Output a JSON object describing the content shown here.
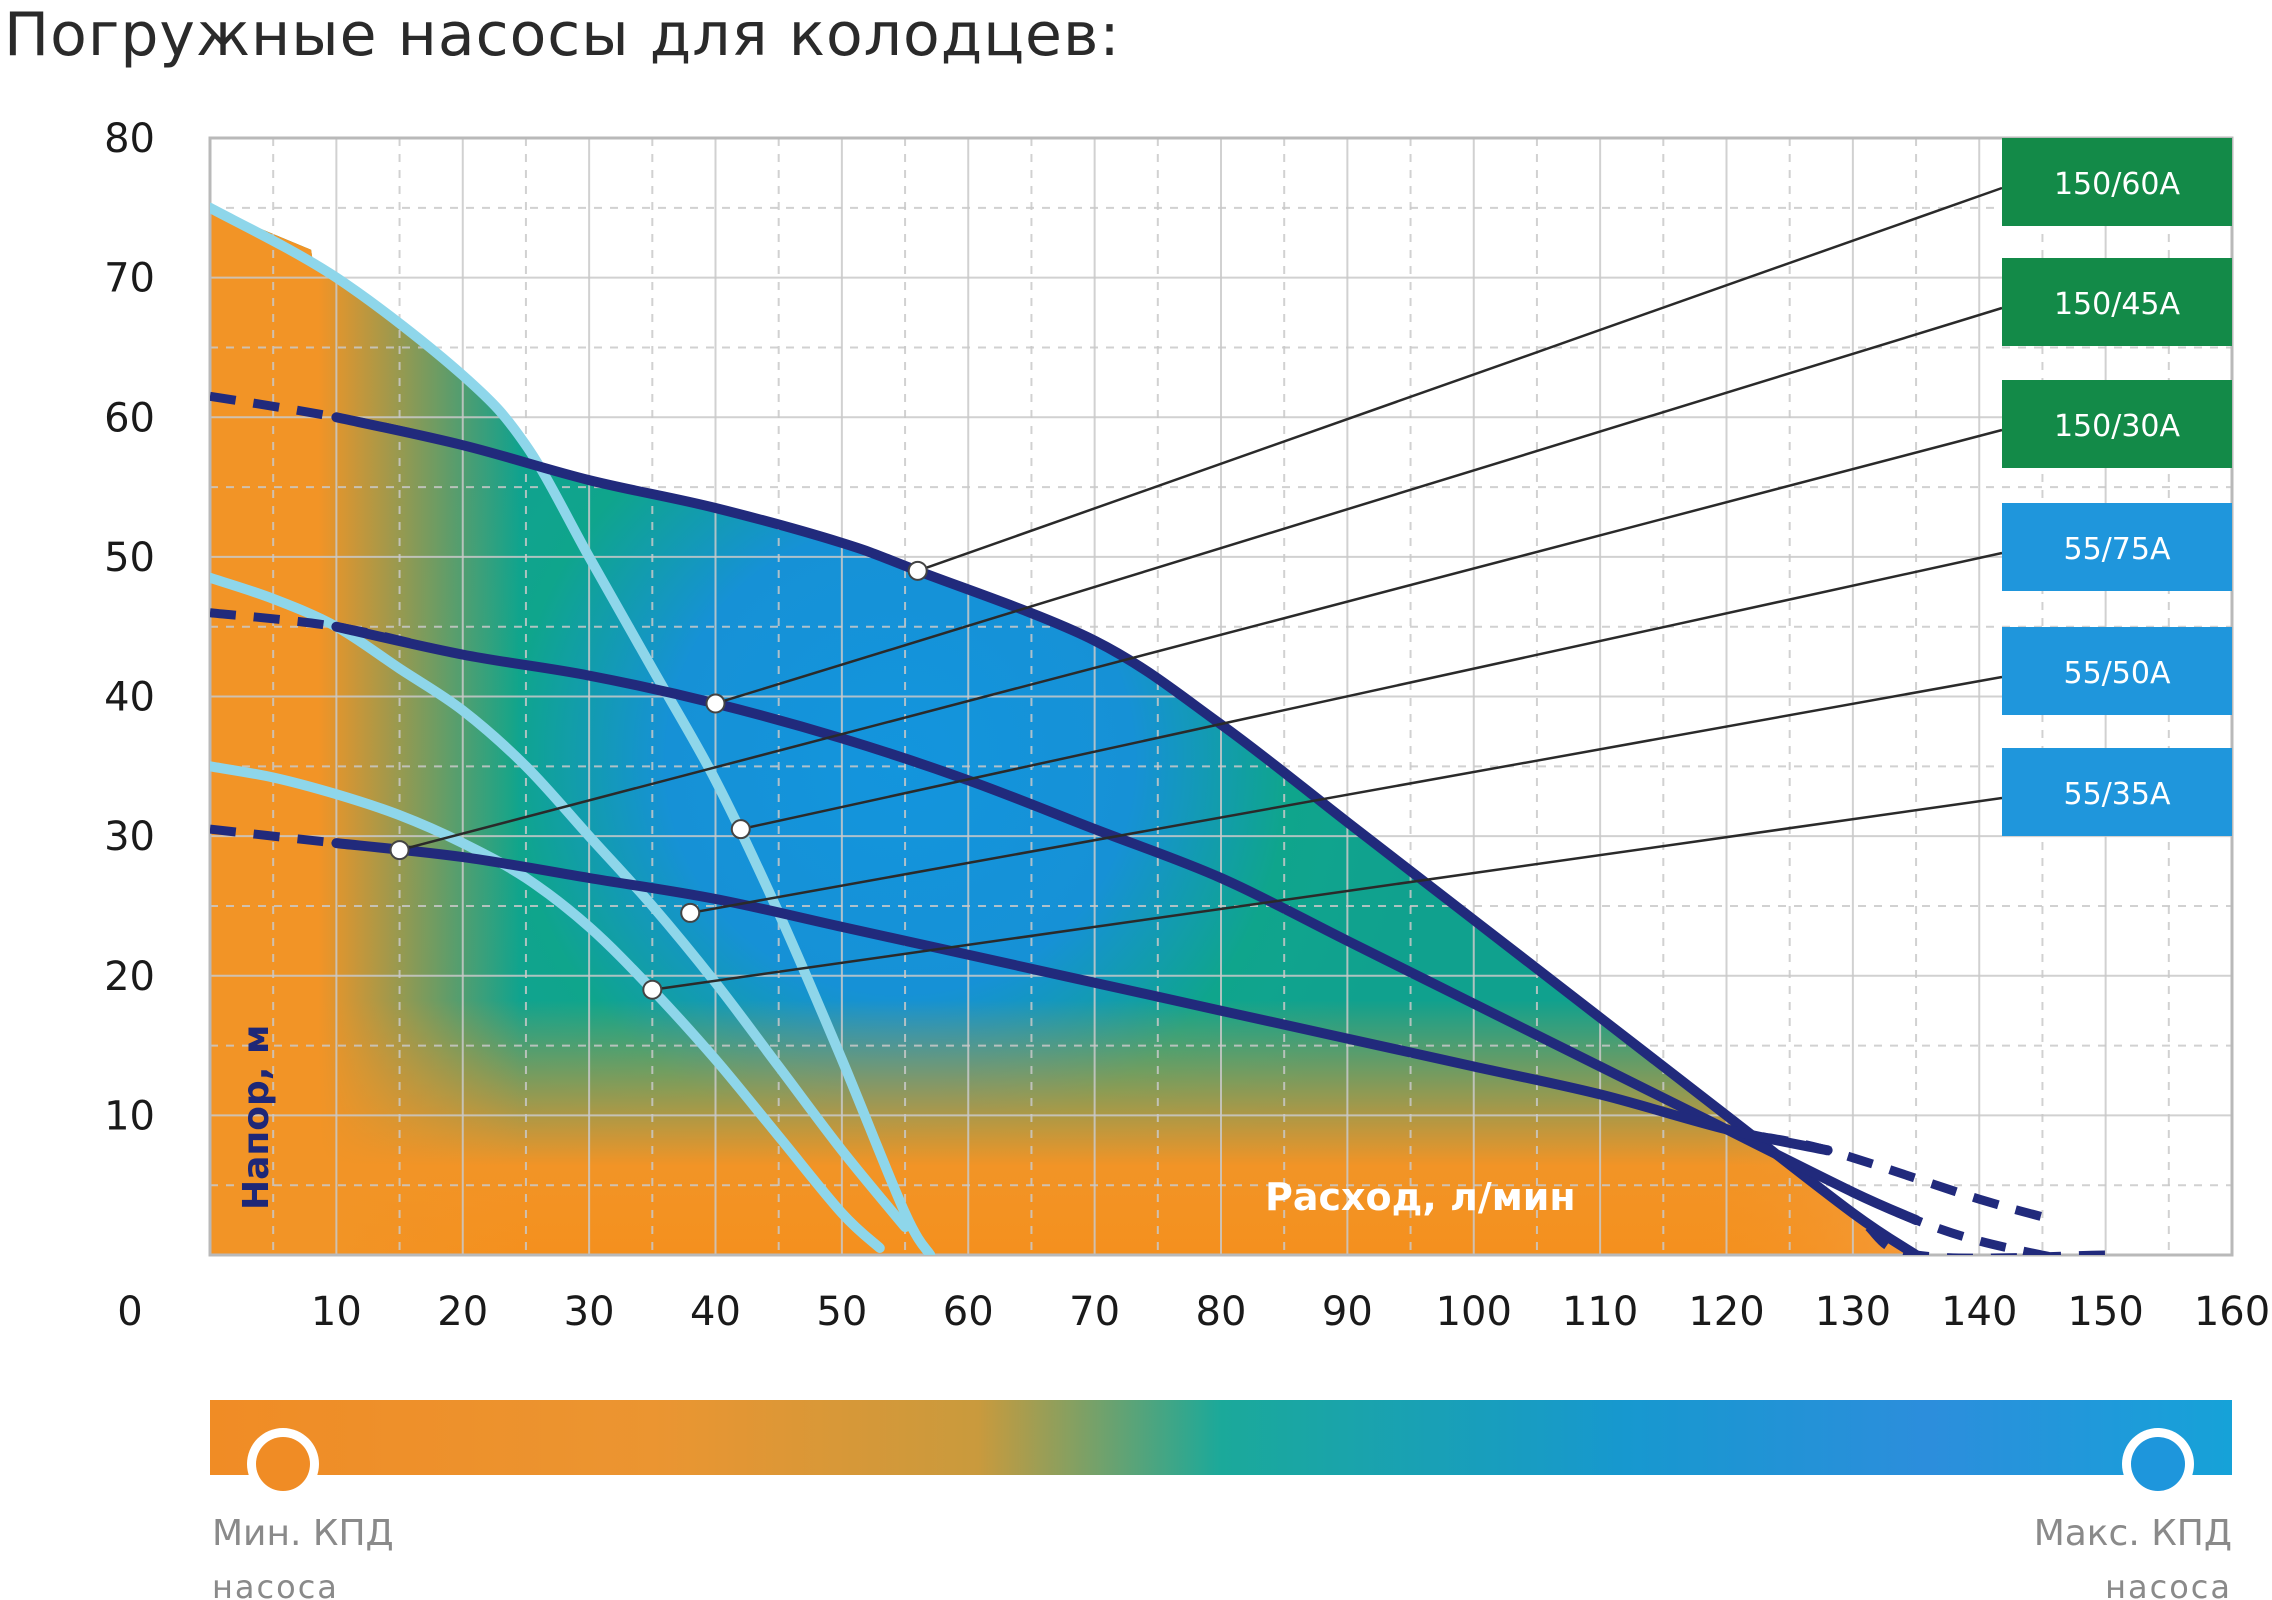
{
  "page": {
    "title": "Погружные насосы для колодцев:"
  },
  "chart_data": {
    "type": "line",
    "xlabel": "Расход, л/мин",
    "ylabel": "Напор, м",
    "xlim": [
      0,
      160
    ],
    "ylim": [
      0,
      80
    ],
    "x_ticks": [
      0,
      10,
      20,
      30,
      40,
      50,
      60,
      70,
      80,
      90,
      100,
      110,
      120,
      130,
      140,
      150,
      160
    ],
    "y_ticks": [
      0,
      10,
      20,
      30,
      40,
      50,
      60,
      70,
      80
    ],
    "x_tick_labels": [
      "10",
      "20",
      "30",
      "40",
      "50",
      "60",
      "70",
      "80",
      "90",
      "100",
      "110",
      "120",
      "130",
      "140",
      "150",
      "160"
    ],
    "y_tick_labels": [
      "10",
      "20",
      "30",
      "40",
      "50",
      "60",
      "70",
      "80"
    ],
    "origin_label": "0",
    "grid": true,
    "legend_position": "right",
    "series": [
      {
        "name": "150/60A",
        "group": "150",
        "label_color": "#138a48",
        "points": [
          [
            0,
            61.5
          ],
          [
            10,
            60
          ],
          [
            20,
            58
          ],
          [
            30,
            55.5
          ],
          [
            40,
            53.5
          ],
          [
            50,
            51
          ],
          [
            56,
            49
          ],
          [
            70,
            44
          ],
          [
            80,
            38
          ],
          [
            90,
            31
          ],
          [
            100,
            24
          ],
          [
            110,
            17
          ],
          [
            120,
            10
          ],
          [
            130,
            3
          ],
          [
            135,
            0
          ],
          [
            150,
            0
          ]
        ],
        "operating_point": [
          56,
          49
        ]
      },
      {
        "name": "150/45A",
        "group": "150",
        "label_color": "#138a48",
        "points": [
          [
            0,
            46
          ],
          [
            10,
            45
          ],
          [
            20,
            43
          ],
          [
            30,
            41.5
          ],
          [
            40,
            39.5
          ],
          [
            50,
            37
          ],
          [
            60,
            34
          ],
          [
            70,
            30.5
          ],
          [
            80,
            27
          ],
          [
            90,
            22.5
          ],
          [
            100,
            18
          ],
          [
            110,
            13.5
          ],
          [
            120,
            9
          ],
          [
            130,
            4.5
          ],
          [
            135,
            2.5
          ],
          [
            140,
            1
          ],
          [
            146,
            -0.2
          ]
        ],
        "operating_point": [
          40,
          39.5
        ]
      },
      {
        "name": "150/30A",
        "group": "150",
        "label_color": "#138a48",
        "points": [
          [
            0,
            30.5
          ],
          [
            10,
            29.5
          ],
          [
            20,
            28.5
          ],
          [
            30,
            27
          ],
          [
            40,
            25.5
          ],
          [
            50,
            23.5
          ],
          [
            60,
            21.5
          ],
          [
            70,
            19.5
          ],
          [
            80,
            17.5
          ],
          [
            90,
            15.5
          ],
          [
            100,
            13.5
          ],
          [
            110,
            11.5
          ],
          [
            120,
            9
          ],
          [
            128,
            7.5
          ],
          [
            140,
            4
          ],
          [
            146,
            2.5
          ]
        ],
        "operating_point": [
          15,
          29
        ]
      },
      {
        "name": "55/75A",
        "group": "55",
        "label_color": "#1f96dc",
        "points": [
          [
            0,
            75
          ],
          [
            10,
            70
          ],
          [
            20,
            63
          ],
          [
            25,
            58
          ],
          [
            30,
            50
          ],
          [
            35,
            42
          ],
          [
            40,
            34
          ],
          [
            45,
            24.5
          ],
          [
            50,
            14
          ],
          [
            55,
            3
          ],
          [
            57,
            0
          ]
        ],
        "operating_point": [
          42,
          30.5
        ]
      },
      {
        "name": "55/50A",
        "group": "55",
        "label_color": "#1f96dc",
        "points": [
          [
            0,
            48.5
          ],
          [
            5,
            47
          ],
          [
            10,
            45
          ],
          [
            15,
            42
          ],
          [
            20,
            39
          ],
          [
            25,
            35
          ],
          [
            30,
            30
          ],
          [
            35,
            25
          ],
          [
            40,
            19.5
          ],
          [
            45,
            13.5
          ],
          [
            50,
            7.5
          ],
          [
            55,
            2
          ]
        ],
        "operating_point": [
          38,
          24.5
        ]
      },
      {
        "name": "55/35A",
        "group": "55",
        "label_color": "#1f96dc",
        "points": [
          [
            0,
            35
          ],
          [
            5,
            34.2
          ],
          [
            10,
            33
          ],
          [
            15,
            31.5
          ],
          [
            20,
            29.5
          ],
          [
            25,
            27
          ],
          [
            30,
            23.5
          ],
          [
            35,
            19
          ],
          [
            40,
            14
          ],
          [
            45,
            8.5
          ],
          [
            50,
            3
          ],
          [
            53,
            0.5
          ]
        ],
        "operating_point": [
          35,
          19
        ]
      }
    ],
    "colorbar": {
      "min_label_line1": "Мин. КПД",
      "min_label_line2": "насоса",
      "max_label_line1": "Макс. КПД",
      "max_label_line2": "насоса",
      "colors": [
        "#f08c25",
        "#e8952b",
        "#1ba99a",
        "#1796d0",
        "#2b8fdb",
        "#16a2d8"
      ],
      "min_marker_color": "#f08c25",
      "max_marker_color": "#1e96dc"
    },
    "colors": {
      "curve_dark": "#212a7c",
      "curve_light": "#8ed6ea",
      "efficiency_low": "#f29426",
      "efficiency_mid": "#10a18e",
      "efficiency_high": "#1395dd"
    }
  }
}
